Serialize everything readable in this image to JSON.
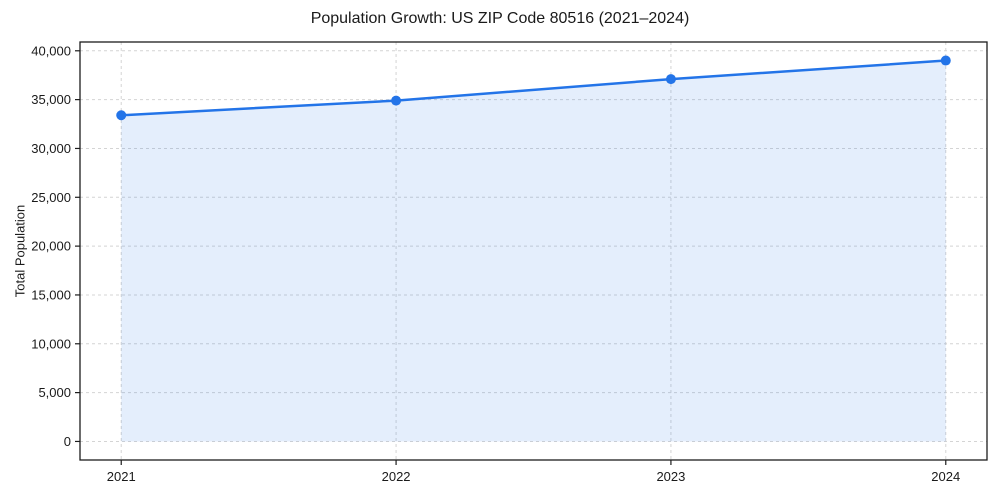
{
  "figure": {
    "background": "#ffffff"
  },
  "chart_data": {
    "type": "line",
    "title": "Population Growth: US ZIP Code 80516 (2021–2024)",
    "xlabel": "",
    "ylabel": "Total Population",
    "x": [
      2021,
      2022,
      2023,
      2024
    ],
    "x_tick_labels": [
      "2021",
      "2022",
      "2023",
      "2024"
    ],
    "series": [
      {
        "name": "Total Population",
        "color": "#2374e8",
        "marker": "circle",
        "values": [
          33400,
          34900,
          37100,
          39000
        ]
      }
    ],
    "area_fill": true,
    "area_fill_opacity": 0.12,
    "area_baseline": 0,
    "xlim": [
      2020.85,
      2024.15
    ],
    "ylim": [
      -1900,
      40900
    ],
    "yticks": [
      0,
      5000,
      10000,
      15000,
      20000,
      25000,
      30000,
      35000,
      40000
    ],
    "y_tick_labels": [
      "0",
      "5,000",
      "10,000",
      "15,000",
      "20,000",
      "25,000",
      "30,000",
      "35,000",
      "40,000"
    ],
    "grid": true,
    "grid_color": "#d4d4d4",
    "axis_color": "#1c1c1c"
  }
}
